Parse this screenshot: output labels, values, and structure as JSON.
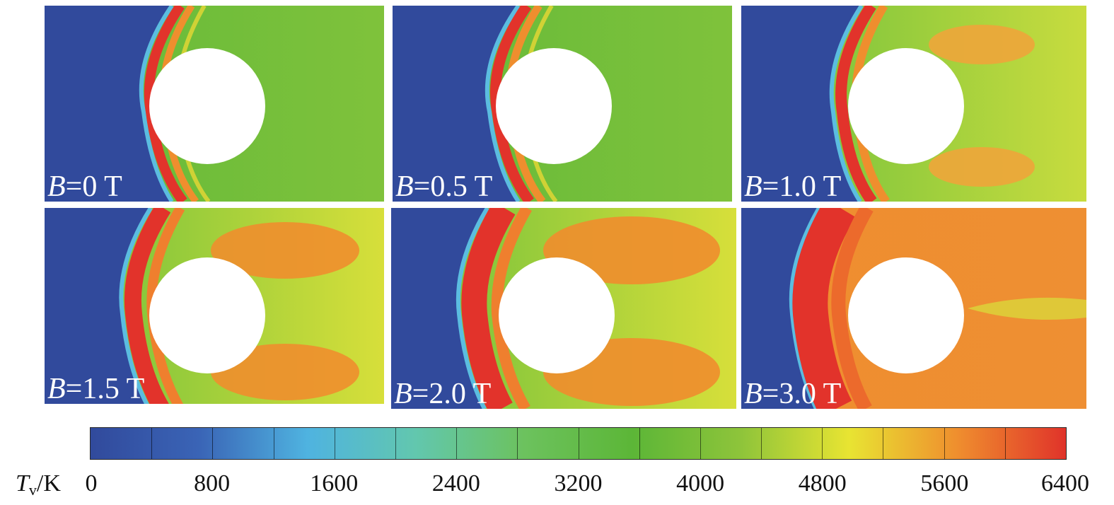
{
  "panels": [
    {
      "var": "B",
      "value": "=0 T"
    },
    {
      "var": "B",
      "value": "=0.5 T"
    },
    {
      "var": "B",
      "value": "=1.0 T"
    },
    {
      "var": "B",
      "value": "=1.5 T"
    },
    {
      "var": "B",
      "value": "=2.0 T"
    },
    {
      "var": "B",
      "value": "=3.0 T"
    }
  ],
  "colorbar": {
    "symbol": "T",
    "subscript": "v",
    "unit": "/K",
    "ticks": [
      "0",
      "800",
      "1600",
      "2400",
      "3200",
      "4000",
      "4800",
      "5600",
      "6400"
    ],
    "colors": [
      "#314a9c",
      "#3a64b6",
      "#4fb3e0",
      "#62c7ae",
      "#6cc25e",
      "#5cb637",
      "#8ec43a",
      "#e8e432",
      "#ef8e2e",
      "#e0332a"
    ]
  },
  "field_colors": {
    "freestream": "#314a9c",
    "shock": "#e2332b",
    "post_shock": "#ef7f2e",
    "wake": "#6cbf3c",
    "body": "#ffffff"
  }
}
